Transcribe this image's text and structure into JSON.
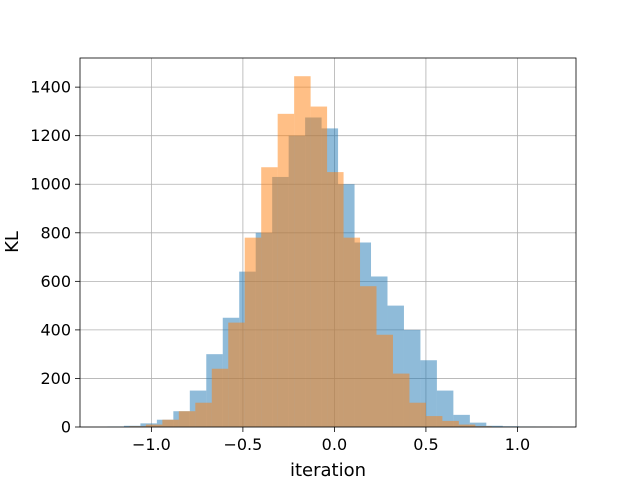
{
  "chart_data": {
    "type": "bar",
    "subtype": "overlapping-histogram",
    "title": "",
    "xlabel": "iteration",
    "ylabel": "KL",
    "xlim": [
      -1.39,
      1.32
    ],
    "ylim": [
      0,
      1520
    ],
    "grid": true,
    "xticks": [
      -1.0,
      -0.5,
      0.0,
      0.5,
      1.0
    ],
    "xtick_labels": [
      "−1.0",
      "−0.5",
      "0.0",
      "0.5",
      "1.0"
    ],
    "yticks": [
      0,
      200,
      400,
      600,
      800,
      1000,
      1200,
      1400
    ],
    "ytick_labels": [
      "0",
      "200",
      "400",
      "600",
      "800",
      "1000",
      "1200",
      "1400"
    ],
    "series": [
      {
        "color": "#1f77b4",
        "opacity": 0.5,
        "bin_edges": [
          -1.24,
          -1.15,
          -1.06,
          -0.97,
          -0.88,
          -0.79,
          -0.7,
          -0.61,
          -0.52,
          -0.43,
          -0.34,
          -0.25,
          -0.16,
          -0.07,
          0.02,
          0.11,
          0.2,
          0.29,
          0.38,
          0.47,
          0.56,
          0.65,
          0.74,
          0.83,
          0.92,
          1.01,
          1.1,
          1.19
        ],
        "counts": [
          2,
          5,
          15,
          30,
          65,
          150,
          300,
          450,
          640,
          800,
          1030,
          1200,
          1275,
          1230,
          1000,
          760,
          620,
          500,
          400,
          275,
          150,
          50,
          18,
          5,
          3,
          2,
          1
        ]
      },
      {
        "color": "#ff7f0e",
        "opacity": 0.5,
        "bin_edges": [
          -1.12,
          -1.03,
          -0.94,
          -0.85,
          -0.76,
          -0.67,
          -0.58,
          -0.49,
          -0.4,
          -0.31,
          -0.22,
          -0.13,
          -0.04,
          0.05,
          0.14,
          0.23,
          0.32,
          0.41,
          0.5,
          0.59,
          0.68,
          0.77,
          0.86
        ],
        "counts": [
          3,
          10,
          30,
          65,
          100,
          240,
          430,
          780,
          1070,
          1290,
          1445,
          1320,
          1050,
          780,
          580,
          380,
          220,
          100,
          45,
          25,
          10,
          3
        ]
      }
    ]
  }
}
